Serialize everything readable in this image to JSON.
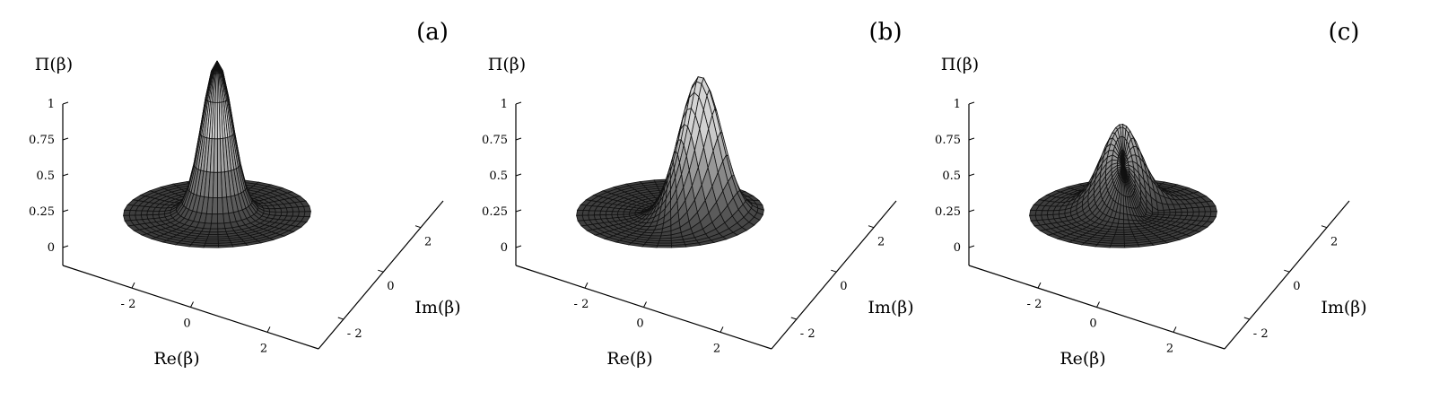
{
  "chart_data": [
    {
      "type": "surface",
      "panel_label": "(a)",
      "zlabel": "Π(β)",
      "xlabel": "Re(β)",
      "ylabel": "Im(β)",
      "z_ticks": [
        "1",
        "0.75",
        "0.5",
        "0.25",
        "0"
      ],
      "x_ticks": [
        "- 2",
        "0",
        "2"
      ],
      "y_ticks": [
        "2",
        "0",
        "- 2"
      ],
      "zlim": [
        0,
        1
      ],
      "xlim": [
        -3.5,
        3.5
      ],
      "ylim": [
        -3.5,
        3.5
      ],
      "peak": {
        "re": 0.0,
        "im": 0.0,
        "height": 1.0
      },
      "dip": null
    },
    {
      "type": "surface",
      "panel_label": "(b)",
      "zlabel": "Π(β)",
      "xlabel": "Re(β)",
      "ylabel": "Im(β)",
      "z_ticks": [
        "1",
        "0.75",
        "0.5",
        "0.25",
        "0"
      ],
      "x_ticks": [
        "- 2",
        "0",
        "2"
      ],
      "y_ticks": [
        "2",
        "0",
        "- 2"
      ],
      "zlim": [
        0,
        1
      ],
      "xlim": [
        -3.5,
        3.5
      ],
      "ylim": [
        -3.5,
        3.5
      ],
      "peak": {
        "re": 1.0,
        "im": 0.5,
        "height": 0.92
      },
      "dip": {
        "re": -1.0,
        "im": 0.5,
        "depth": 0.1
      }
    },
    {
      "type": "surface",
      "panel_label": "(c)",
      "zlabel": "Π(β)",
      "xlabel": "Re(β)",
      "ylabel": "Im(β)",
      "z_ticks": [
        "1",
        "0.75",
        "0.5",
        "0.25",
        "0"
      ],
      "x_ticks": [
        "- 2",
        "0",
        "2"
      ],
      "y_ticks": [
        "2",
        "0",
        "- 2"
      ],
      "zlim": [
        0,
        1
      ],
      "xlim": [
        -3.5,
        3.5
      ],
      "ylim": [
        -3.5,
        3.5
      ],
      "peak": {
        "re": -0.5,
        "im": 0.5,
        "height": 0.55
      },
      "dip": {
        "re": 0.6,
        "im": 0.6,
        "depth": 0.15
      }
    }
  ]
}
